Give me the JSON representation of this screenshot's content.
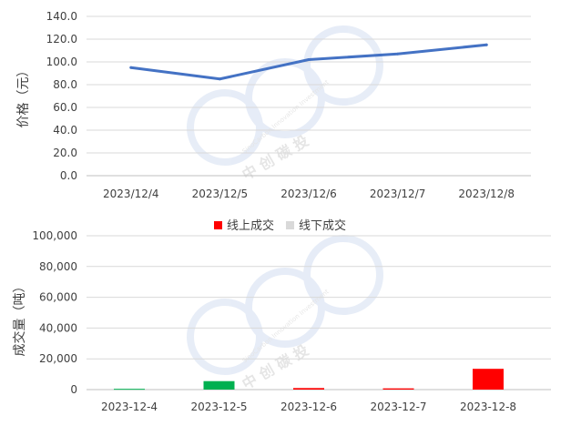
{
  "chart_data": [
    {
      "type": "line",
      "categories": [
        "2023/12/4",
        "2023/12/5",
        "2023/12/6",
        "2023/12/7",
        "2023/12/8"
      ],
      "series": [
        {
          "values": [
            95,
            85,
            102,
            107,
            115
          ],
          "color": "#4472C4"
        }
      ],
      "ylabel": "价格（元）",
      "ylim": [
        0,
        140
      ],
      "yticks": [
        "0.0",
        "20.0",
        "40.0",
        "60.0",
        "80.0",
        "100.0",
        "120.0",
        "140.0"
      ],
      "grid": true,
      "legend": "none"
    },
    {
      "type": "bar",
      "categories": [
        "2023-12-4",
        "2023-12-5",
        "2023-12-6",
        "2023-12-7",
        "2023-12-8"
      ],
      "series": [
        {
          "name": "线上成交",
          "values": [
            500,
            5500,
            1000,
            800,
            13500
          ],
          "color": "#FF0000"
        },
        {
          "name": "线下成交",
          "values": [
            0,
            0,
            0,
            0,
            0
          ],
          "color": "#D9D9D9"
        }
      ],
      "bar_colors": [
        "#00B050",
        "#00B050",
        "#FF0000",
        "#FF0000",
        "#FF0000"
      ],
      "ylabel": "成交量（吨）",
      "ylim": [
        0,
        100000
      ],
      "yticks": [
        "0",
        "20,000",
        "40,000",
        "60,000",
        "80,000",
        "100,000"
      ],
      "grid": true,
      "legend": "top"
    }
  ],
  "watermark": {
    "text": "中 创 碳 投",
    "subtext": "SinoCarbon Innovation Investment"
  }
}
